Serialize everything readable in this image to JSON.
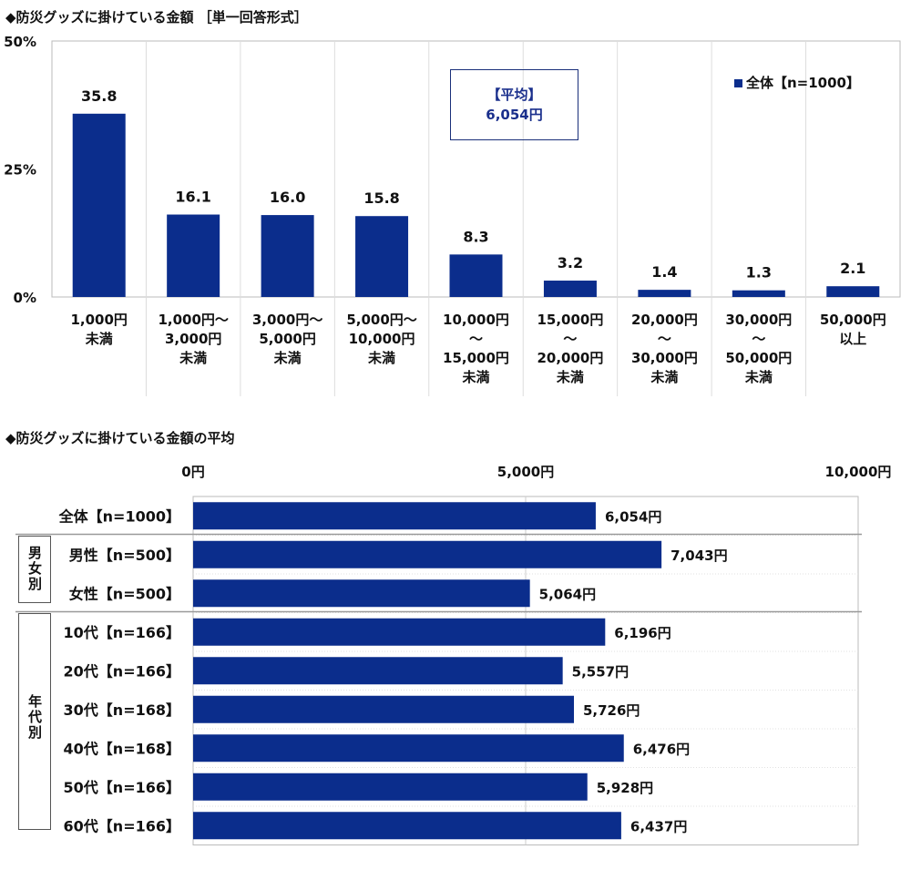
{
  "chart_data": [
    {
      "type": "bar",
      "title": "◆防災グッズに掛けている金額 ［単一回答形式］",
      "categories": [
        [
          "1,000円",
          "未満"
        ],
        [
          "1,000円～",
          "3,000円",
          "未満"
        ],
        [
          "3,000円～",
          "5,000円",
          "未満"
        ],
        [
          "5,000円～",
          "10,000円",
          "未満"
        ],
        [
          "10,000円",
          "～",
          "15,000円",
          "未満"
        ],
        [
          "15,000円",
          "～",
          "20,000円",
          "未満"
        ],
        [
          "20,000円",
          "～",
          "30,000円",
          "未満"
        ],
        [
          "30,000円",
          "～",
          "50,000円",
          "未満"
        ],
        [
          "50,000円",
          "以上"
        ]
      ],
      "series": [
        {
          "name": "全体【n=1000】",
          "values": [
            35.8,
            16.1,
            16.0,
            15.8,
            8.3,
            3.2,
            1.4,
            1.3,
            2.1
          ]
        }
      ],
      "ylim": [
        0,
        50
      ],
      "yticks": [
        "0%",
        "25%",
        "50%"
      ],
      "grid": true,
      "legend": "top-right",
      "annotation": {
        "line1": "【平均】",
        "line2": "6,054円"
      },
      "color": "#0b2d8c"
    },
    {
      "type": "bar",
      "orientation": "horizontal",
      "title": "◆防災グッズに掛けている金額の平均",
      "categories": [
        "全体【n=1000】",
        "男性【n=500】",
        "女性【n=500】",
        "10代【n=166】",
        "20代【n=166】",
        "30代【n=168】",
        "40代【n=168】",
        "50代【n=166】",
        "60代【n=166】"
      ],
      "values": [
        6054,
        7043,
        5064,
        6196,
        5557,
        5726,
        6476,
        5928,
        6437
      ],
      "value_labels": [
        "6,054円",
        "7,043円",
        "5,064円",
        "6,196円",
        "5,557円",
        "5,726円",
        "6,476円",
        "5,928円",
        "6,437円"
      ],
      "xlim": [
        0,
        10000
      ],
      "xticks": [
        "0円",
        "5,000円",
        "10,000円"
      ],
      "groups": [
        {
          "label": "男女別"
        },
        {
          "label": "年代別"
        }
      ],
      "color": "#0b2d8c"
    }
  ]
}
